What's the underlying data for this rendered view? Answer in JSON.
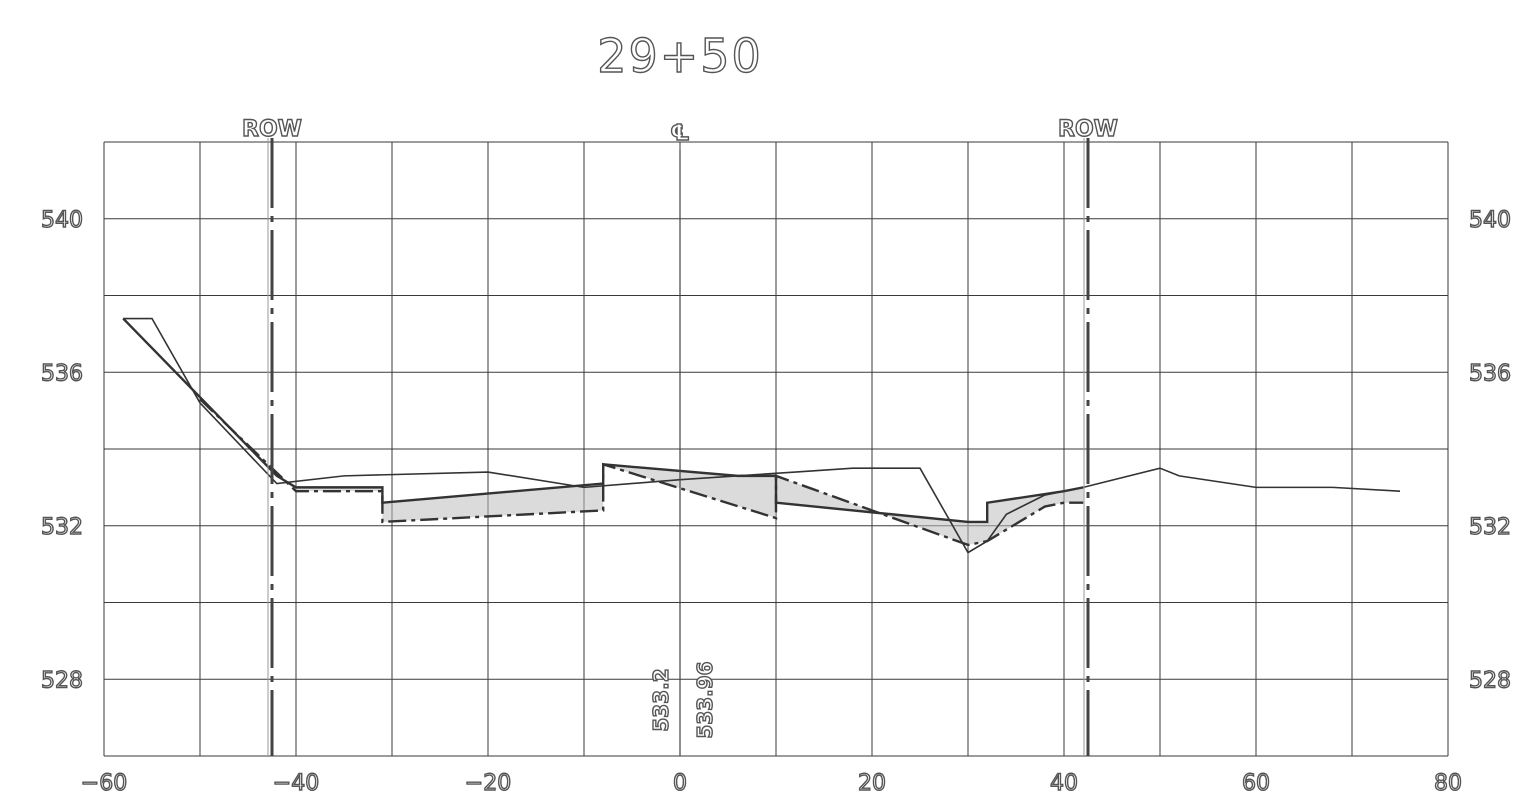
{
  "title": "29+50",
  "row_label_left": "ROW",
  "row_label_right": "ROW",
  "centerline_symbol": "℄",
  "x_axis": {
    "ticks": [
      -60,
      -40,
      -20,
      0,
      20,
      40,
      60,
      80
    ],
    "range": [
      -60,
      80
    ]
  },
  "y_axis": {
    "ticks": [
      528,
      532,
      536,
      540
    ],
    "range": [
      526,
      542
    ]
  },
  "centerline_elevations": [
    "533.2",
    "533.96"
  ],
  "row_offsets": [
    -42.5,
    42.5
  ],
  "colors": {
    "grid": "#3a3a3a",
    "line": "#333333",
    "fill": "#bdbdbd",
    "label_stroke": "#555555"
  },
  "chart_data": {
    "type": "line",
    "title": "29+50",
    "xlim": [
      -60,
      80
    ],
    "ylim": [
      526,
      542
    ],
    "grid": true,
    "series": [
      {
        "role": "existing-ground",
        "x": [
          -58,
          -55,
          -50,
          -42,
          -35,
          -20,
          -10,
          0,
          12,
          18,
          20,
          25,
          30,
          32,
          34,
          38,
          42,
          50,
          52,
          60,
          68,
          75
        ],
        "y": [
          537.4,
          537.4,
          535.2,
          533.1,
          533.3,
          533.4,
          533.0,
          533.2,
          533.4,
          533.5,
          533.5,
          533.5,
          531.3,
          531.6,
          532.3,
          532.8,
          533.0,
          533.5,
          533.3,
          533.0,
          533.0,
          532.9
        ]
      },
      {
        "role": "proposed-template-top",
        "x": [
          -58,
          -42,
          -40,
          -31,
          -31,
          -8,
          -8,
          6,
          8,
          10,
          10,
          30,
          32,
          32,
          40,
          42
        ],
        "y": [
          537.4,
          533.3,
          533.0,
          533.0,
          532.6,
          533.1,
          533.6,
          533.3,
          533.3,
          533.3,
          532.6,
          532.1,
          532.1,
          532.6,
          532.9,
          533.0
        ]
      },
      {
        "role": "proposed-template-bottom",
        "x": [
          -50,
          -40,
          -31,
          -31,
          -8,
          -8,
          10,
          10,
          30,
          32,
          38,
          40,
          42
        ],
        "y": [
          535.3,
          532.9,
          532.9,
          532.1,
          532.4,
          533.6,
          532.2,
          533.3,
          531.5,
          531.6,
          532.5,
          532.6,
          532.6
        ]
      }
    ]
  }
}
